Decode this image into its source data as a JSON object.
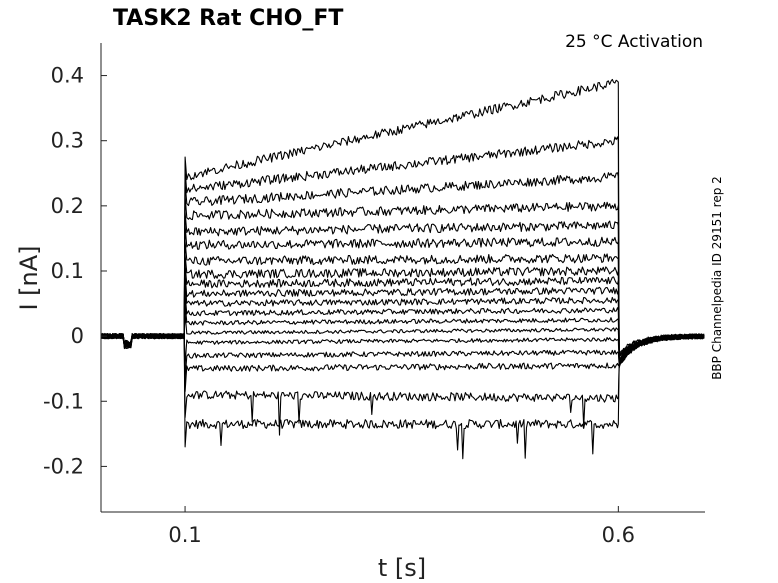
{
  "chart_data": {
    "type": "line",
    "title": "TASK2  Rat  CHO_FT",
    "annotation": "25 °C  Activation",
    "side_note": "BBP Channelpedia ID 29151 rep 2",
    "xlabel": "t [s]",
    "ylabel": "I [nA]",
    "xlim": [
      0.003,
      0.7
    ],
    "ylim": [
      -0.27,
      0.45
    ],
    "x_ticks": [
      0.1,
      0.6
    ],
    "x_tick_labels": [
      "0.1",
      "0.6"
    ],
    "y_ticks": [
      -0.2,
      -0.1,
      0,
      0.1,
      0.2,
      0.3,
      0.4
    ],
    "y_tick_labels": [
      "-0.2",
      "-0.1",
      "0",
      "0.1",
      "0.2",
      "0.3",
      "0.4"
    ],
    "pulse_start": 0.1,
    "pulse_end": 0.6,
    "grid": false,
    "series": [
      {
        "steady_values": [
          -0.135,
          -0.135
        ]
      },
      {
        "steady_values": [
          -0.09,
          -0.095
        ]
      },
      {
        "steady_values": [
          -0.05,
          -0.045
        ]
      },
      {
        "steady_values": [
          -0.03,
          -0.025
        ]
      },
      {
        "steady_values": [
          -0.01,
          -0.005
        ]
      },
      {
        "steady_values": [
          0.005,
          0.01
        ]
      },
      {
        "steady_values": [
          0.02,
          0.025
        ]
      },
      {
        "steady_values": [
          0.035,
          0.04
        ]
      },
      {
        "steady_values": [
          0.05,
          0.055
        ]
      },
      {
        "steady_values": [
          0.065,
          0.07
        ]
      },
      {
        "steady_values": [
          0.08,
          0.085
        ]
      },
      {
        "steady_values": [
          0.095,
          0.1
        ]
      },
      {
        "steady_values": [
          0.115,
          0.12
        ]
      },
      {
        "steady_values": [
          0.14,
          0.145
        ]
      },
      {
        "steady_values": [
          0.16,
          0.17
        ]
      },
      {
        "steady_values": [
          0.185,
          0.2
        ]
      },
      {
        "steady_values": [
          0.205,
          0.245
        ]
      },
      {
        "steady_values": [
          0.225,
          0.3
        ]
      },
      {
        "steady_values": [
          0.245,
          0.39
        ]
      }
    ]
  }
}
